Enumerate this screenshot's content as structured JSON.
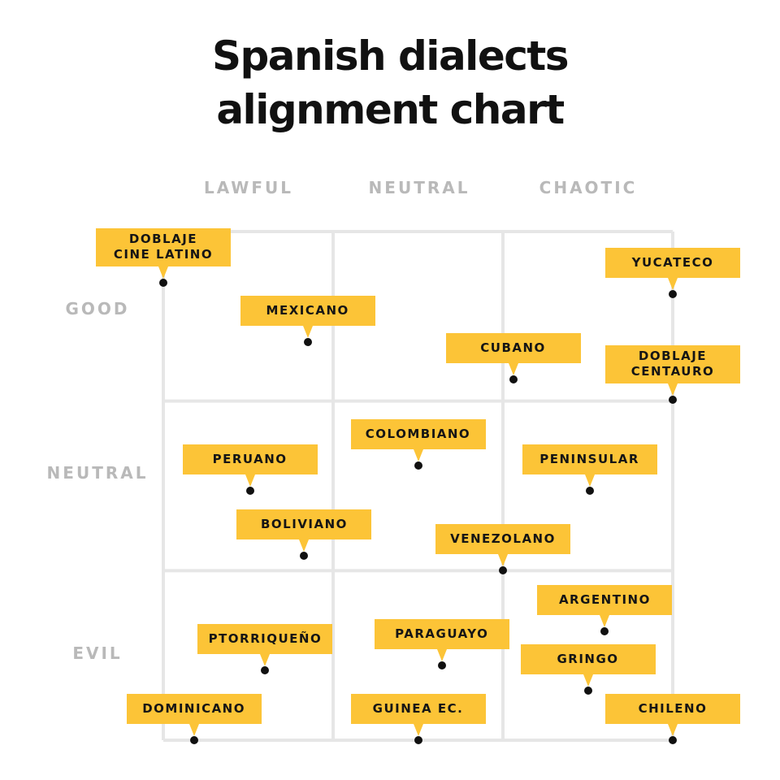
{
  "title_lines": [
    "Spanish dialects",
    "alignment chart"
  ],
  "chart_data": {
    "type": "scatter",
    "title": "Spanish dialects alignment chart",
    "x_categories": [
      "LAWFUL",
      "NEUTRAL",
      "CHAOTIC"
    ],
    "y_categories": [
      "GOOD",
      "NEUTRAL",
      "EVIL"
    ],
    "xlim": [
      0,
      3
    ],
    "ylim": [
      0,
      3
    ],
    "x_direction": "lawful-to-chaotic",
    "y_direction": "good-to-evil",
    "grid": true,
    "colors": {
      "tag": "#fcc437",
      "grid": "#e6e6e6",
      "axis_text": "#b9b9b9",
      "dot": "#111111"
    },
    "points": [
      {
        "label": "DOBLAJE\nCINE LATINO",
        "x": 0.0,
        "y": 0.3,
        "tag_offset": -0.45,
        "tag_height": "tall"
      },
      {
        "label": "MEXICANO",
        "x": 0.85,
        "y": 0.65,
        "tag_offset": -0.32,
        "tag_height": "short"
      },
      {
        "label": "YUCATECO",
        "x": 3.0,
        "y": 0.37,
        "tag_offset": -0.36,
        "tag_height": "short"
      },
      {
        "label": "CUBANO",
        "x": 2.06,
        "y": 0.87,
        "tag_offset": -0.33,
        "tag_height": "short"
      },
      {
        "label": "DOBLAJE\nCENTAURO",
        "x": 3.0,
        "y": 0.99,
        "tag_offset": -0.46,
        "tag_height": "tall"
      },
      {
        "label": "COLOMBIANO",
        "x": 1.5,
        "y": 1.38,
        "tag_offset": -0.3,
        "tag_height": "short"
      },
      {
        "label": "PERUANO",
        "x": 0.51,
        "y": 1.53,
        "tag_offset": -0.3,
        "tag_height": "short"
      },
      {
        "label": "PENINSULAR",
        "x": 2.51,
        "y": 1.53,
        "tag_offset": -0.3,
        "tag_height": "short"
      },
      {
        "label": "BOLIVIANO",
        "x": 0.83,
        "y": 1.91,
        "tag_offset": -0.3,
        "tag_height": "short"
      },
      {
        "label": "VENEZOLANO",
        "x": 2.0,
        "y": 2.0,
        "tag_offset": -0.3,
        "tag_height": "short"
      },
      {
        "label": "ARGENTINO",
        "x": 2.6,
        "y": 2.36,
        "tag_offset": -0.3,
        "tag_height": "short"
      },
      {
        "label": "PTORRIQUEÑO",
        "x": 0.6,
        "y": 2.59,
        "tag_offset": -0.3,
        "tag_height": "short"
      },
      {
        "label": "PARAGUAYO",
        "x": 1.64,
        "y": 2.56,
        "tag_offset": -0.3,
        "tag_height": "short"
      },
      {
        "label": "GRINGO",
        "x": 2.5,
        "y": 2.71,
        "tag_offset": -0.3,
        "tag_height": "short"
      },
      {
        "label": "DOMINICANO",
        "x": 0.18,
        "y": 3.0,
        "tag_offset": -0.3,
        "tag_height": "short"
      },
      {
        "label": "GUINEA EC.",
        "x": 1.5,
        "y": 3.0,
        "tag_offset": -0.3,
        "tag_height": "short"
      },
      {
        "label": "CHILENO",
        "x": 3.0,
        "y": 3.0,
        "tag_offset": -0.3,
        "tag_height": "short"
      }
    ]
  }
}
